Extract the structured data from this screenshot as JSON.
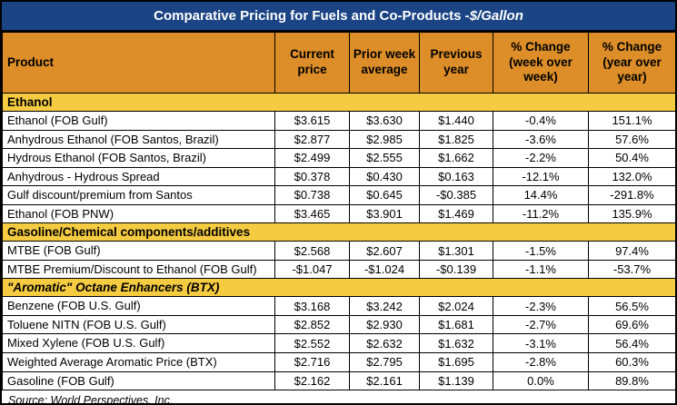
{
  "title": {
    "main": "Comparative Pricing for Fuels and Co-Products - ",
    "unit": "$/Gallon"
  },
  "columns": [
    "Product",
    "Current price",
    "Prior week average",
    "Previous year",
    "% Change (week over week)",
    "% Change (year over year)"
  ],
  "sections": [
    {
      "label": "Ethanol",
      "emphasis": "normal",
      "rows": [
        {
          "product": "Ethanol (FOB Gulf)",
          "current": "$3.615",
          "prior": "$3.630",
          "previous": "$1.440",
          "wow": "-0.4%",
          "yoy": "151.1%"
        },
        {
          "product": "Anhydrous Ethanol (FOB Santos, Brazil)",
          "current": "$2.877",
          "prior": "$2.985",
          "previous": "$1.825",
          "wow": "-3.6%",
          "yoy": "57.6%"
        },
        {
          "product": "Hydrous Ethanol (FOB Santos, Brazil)",
          "current": "$2.499",
          "prior": "$2.555",
          "previous": "$1.662",
          "wow": "-2.2%",
          "yoy": "50.4%"
        },
        {
          "product": "Anhydrous - Hydrous Spread",
          "current": "$0.378",
          "prior": "$0.430",
          "previous": "$0.163",
          "wow": "-12.1%",
          "yoy": "132.0%"
        },
        {
          "product": "Gulf discount/premium from Santos",
          "current": "$0.738",
          "prior": "$0.645",
          "previous": "-$0.385",
          "wow": "14.4%",
          "yoy": "-291.8%"
        },
        {
          "product": "Ethanol (FOB PNW)",
          "current": "$3.465",
          "prior": "$3.901",
          "previous": "$1.469",
          "wow": "-11.2%",
          "yoy": "135.9%"
        }
      ]
    },
    {
      "label": "Gasoline/Chemical components/additives",
      "emphasis": "normal",
      "rows": [
        {
          "product": "MTBE (FOB Gulf)",
          "current": "$2.568",
          "prior": "$2.607",
          "previous": "$1.301",
          "wow": "-1.5%",
          "yoy": "97.4%"
        },
        {
          "product": "MTBE Premium/Discount to Ethanol (FOB Gulf)",
          "current": "-$1.047",
          "prior": "-$1.024",
          "previous": "-$0.139",
          "wow": "-1.1%",
          "yoy": "-53.7%"
        }
      ]
    },
    {
      "label": "\"Aromatic\" Octane Enhancers (BTX)",
      "emphasis": "italic",
      "rows": [
        {
          "product": "Benzene (FOB U.S. Gulf)",
          "current": "$3.168",
          "prior": "$3.242",
          "previous": "$2.024",
          "wow": "-2.3%",
          "yoy": "56.5%"
        },
        {
          "product": "Toluene NITN (FOB U.S. Gulf)",
          "current": "$2.852",
          "prior": "$2.930",
          "previous": "$1.681",
          "wow": "-2.7%",
          "yoy": "69.6%"
        },
        {
          "product": "Mixed Xylene (FOB U.S. Gulf)",
          "current": "$2.552",
          "prior": "$2.632",
          "previous": "$1.632",
          "wow": "-3.1%",
          "yoy": "56.4%"
        },
        {
          "product": "Weighted Average Aromatic Price (BTX)",
          "current": "$2.716",
          "prior": "$2.795",
          "previous": "$1.695",
          "wow": "-2.8%",
          "yoy": "60.3%"
        },
        {
          "product": "Gasoline (FOB Gulf)",
          "current": "$2.162",
          "prior": "$2.161",
          "previous": "$1.139",
          "wow": "0.0%",
          "yoy": "89.8%"
        }
      ]
    }
  ],
  "source": "Source: World Perspectives, Inc.",
  "colors": {
    "title_bg": "#1B4484",
    "header_bg": "#DD8E28",
    "section_bg": "#F5CB41",
    "border": "#000000"
  }
}
